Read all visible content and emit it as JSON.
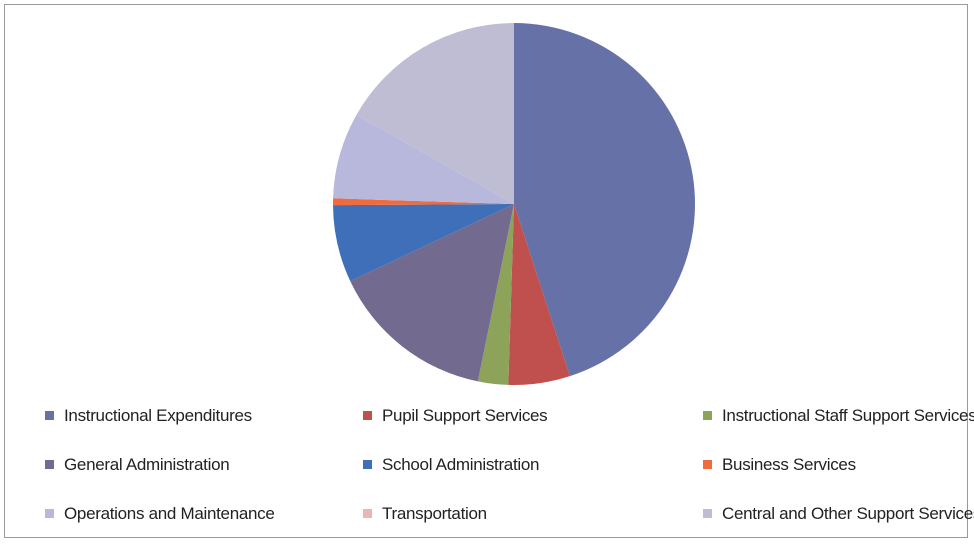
{
  "chart_data": {
    "type": "pie",
    "title": "",
    "slices": [
      {
        "label": "Instructional Expenditures",
        "value": 45.0,
        "color": "#6671a8"
      },
      {
        "label": "Pupil Support Services",
        "value": 5.5,
        "color": "#c0504d"
      },
      {
        "label": "Instructional Staff Support Services",
        "value": 2.7,
        "color": "#8ea35a"
      },
      {
        "label": "General Administration",
        "value": 14.8,
        "color": "#736a8f"
      },
      {
        "label": "School Administration",
        "value": 6.9,
        "color": "#3f6fb8"
      },
      {
        "label": "Business Services",
        "value": 0.6,
        "color": "#ef6a3c"
      },
      {
        "label": "Operations and Maintenance",
        "value": 7.7,
        "color": "#b7b8db"
      },
      {
        "label": "Transportation",
        "value": 0.0,
        "color": "#e8b8b0"
      },
      {
        "label": "Central and Other Support Services",
        "value": 16.8,
        "color": "#bfbdd4"
      }
    ],
    "start_angle_deg": 0,
    "direction": "clockwise",
    "legend_position": "bottom"
  }
}
